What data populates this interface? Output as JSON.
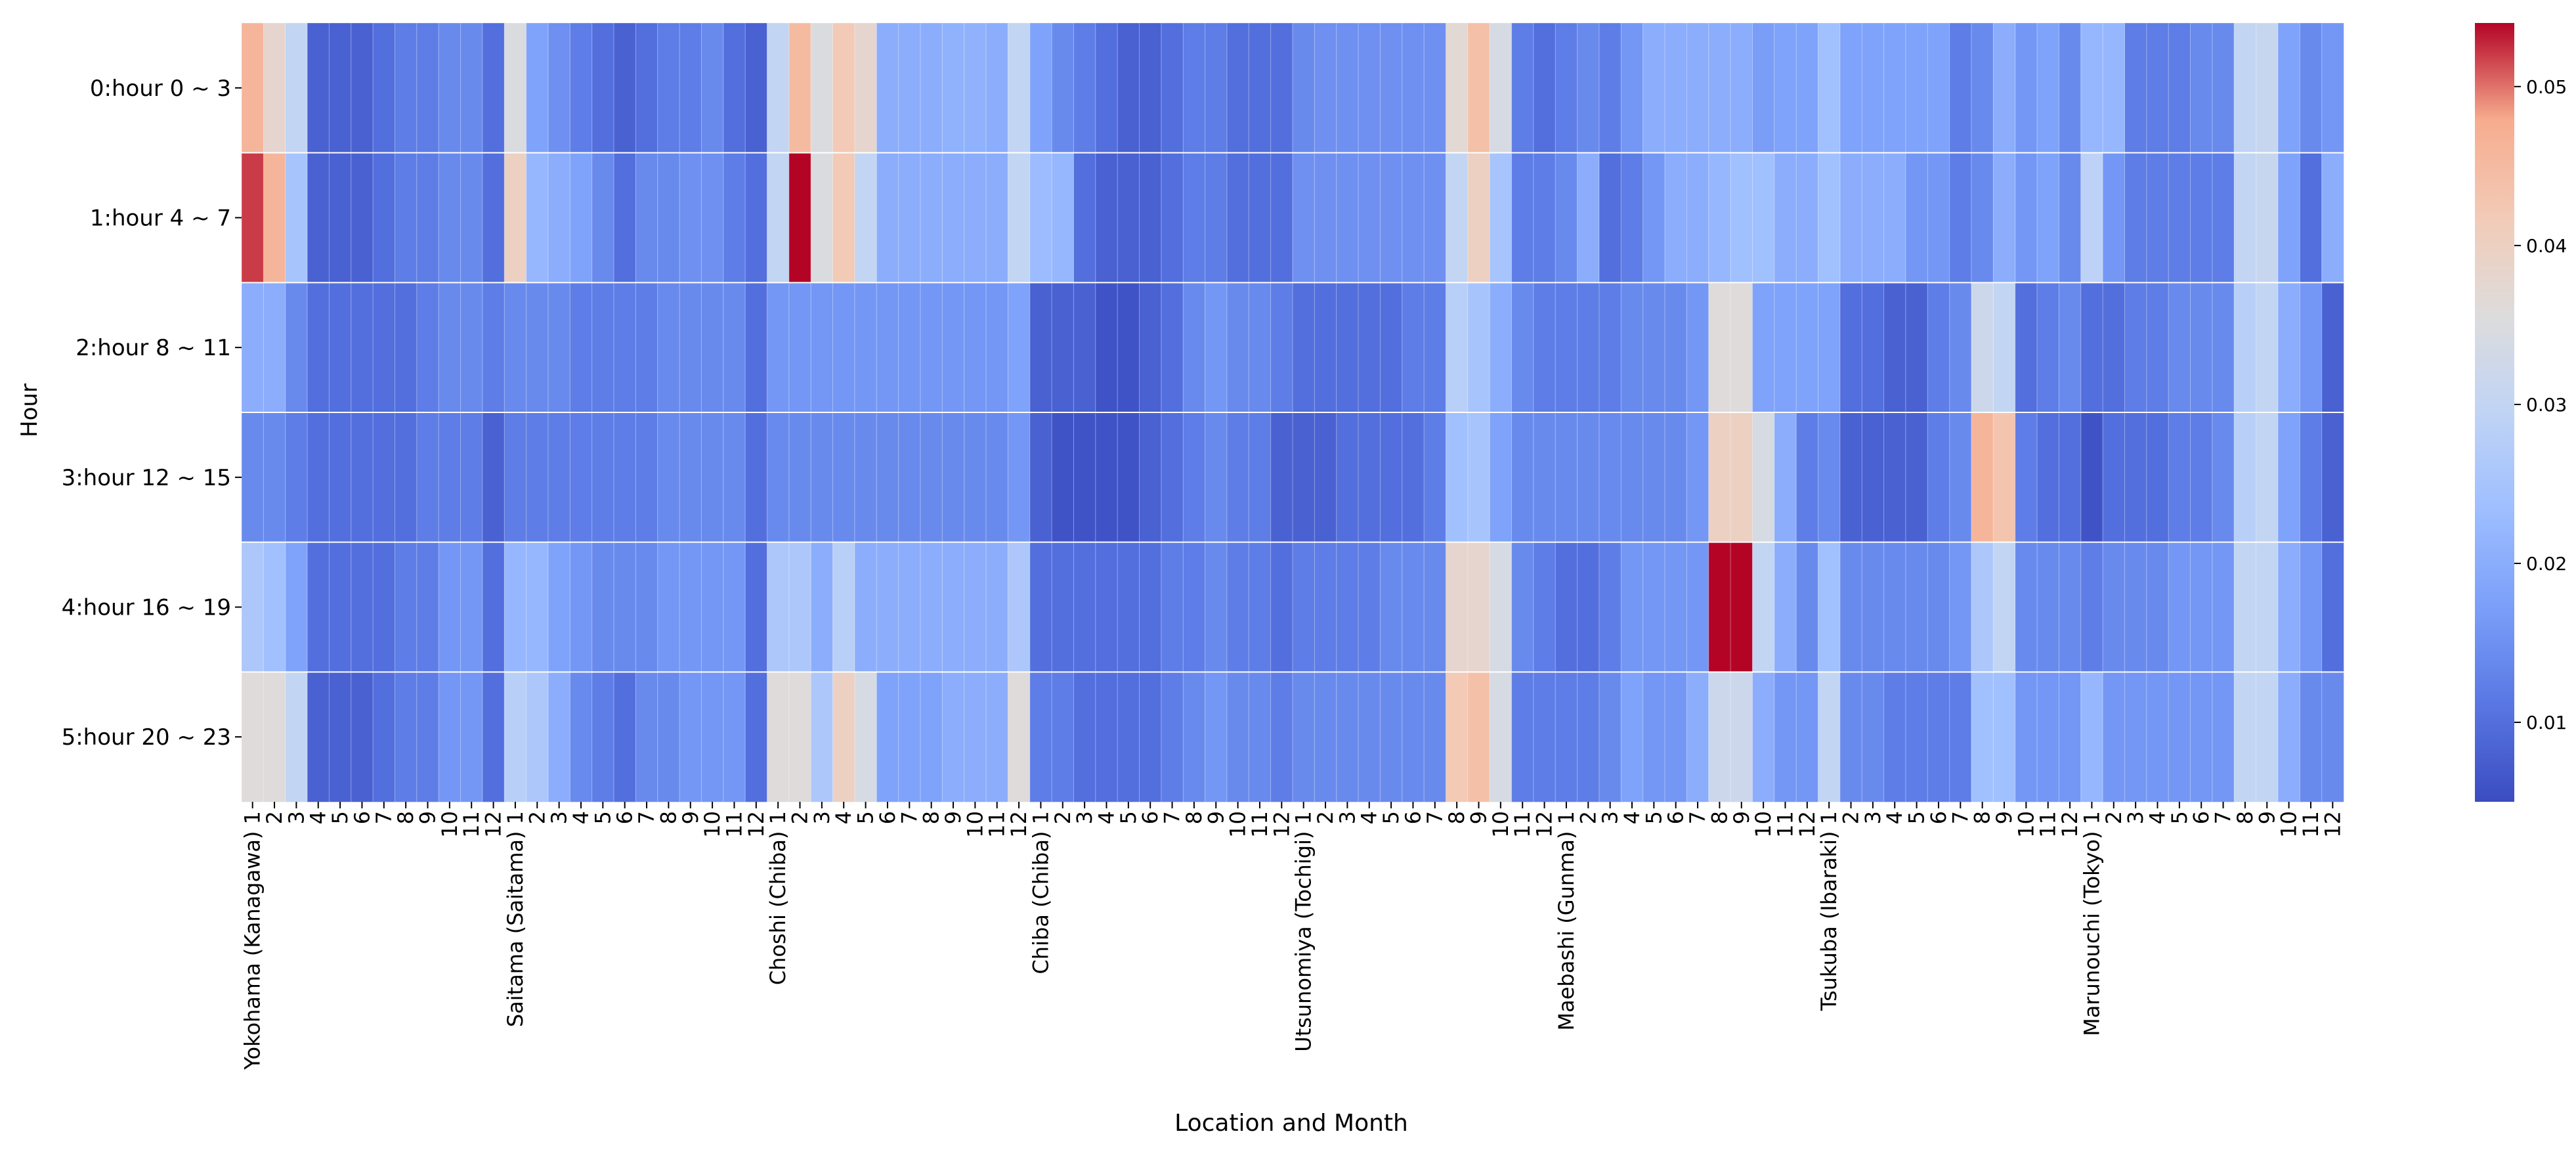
{
  "chart_data": {
    "type": "heatmap",
    "title": "",
    "xlabel": "Location and Month",
    "ylabel": "Hour",
    "rows": [
      "0:hour 0 ~ 3",
      "1:hour 4 ~ 7",
      "2:hour 8 ~ 11",
      "3:hour 12 ~ 15",
      "4:hour 16 ~ 19",
      "5:hour 20 ~ 23"
    ],
    "locations": [
      "Yokohama (Kanagawa)",
      "Saitama (Saitama)",
      "Choshi (Chiba)",
      "Chiba (Chiba)",
      "Utsunomiya (Tochigi)",
      "Maebashi (Gunma)",
      "Tsukuba (Ibaraki)",
      "Marunouchi (Tokyo)"
    ],
    "months": [
      "1",
      "2",
      "3",
      "4",
      "5",
      "6",
      "7",
      "8",
      "9",
      "10",
      "11",
      "12"
    ],
    "colorbar": {
      "min": 0.005,
      "max": 0.054,
      "ticks": [
        0.01,
        0.02,
        0.03,
        0.04,
        0.05
      ],
      "tick_labels": [
        "0.01",
        "0.02",
        "0.03",
        "0.04",
        "0.05"
      ],
      "colormap": "coolwarm"
    },
    "values": [
      [
        0.046,
        0.038,
        0.03,
        0.008,
        0.008,
        0.008,
        0.01,
        0.012,
        0.012,
        0.014,
        0.014,
        0.01,
        0.035,
        0.018,
        0.015,
        0.012,
        0.01,
        0.008,
        0.01,
        0.012,
        0.012,
        0.014,
        0.01,
        0.008,
        0.03,
        0.045,
        0.035,
        0.042,
        0.038,
        0.02,
        0.02,
        0.02,
        0.021,
        0.021,
        0.02,
        0.03,
        0.018,
        0.014,
        0.012,
        0.01,
        0.008,
        0.008,
        0.01,
        0.012,
        0.012,
        0.01,
        0.01,
        0.01,
        0.014,
        0.015,
        0.015,
        0.015,
        0.015,
        0.015,
        0.015,
        0.037,
        0.044,
        0.034,
        0.012,
        0.01,
        0.012,
        0.014,
        0.012,
        0.016,
        0.02,
        0.02,
        0.02,
        0.02,
        0.02,
        0.017,
        0.018,
        0.018,
        0.024,
        0.018,
        0.018,
        0.018,
        0.018,
        0.018,
        0.012,
        0.014,
        0.02,
        0.016,
        0.018,
        0.014,
        0.022,
        0.022,
        0.012,
        0.012,
        0.012,
        0.014,
        0.014,
        0.03,
        0.031,
        0.018,
        0.014,
        0.016
      ],
      [
        0.052,
        0.046,
        0.025,
        0.008,
        0.008,
        0.008,
        0.01,
        0.012,
        0.012,
        0.014,
        0.014,
        0.01,
        0.04,
        0.022,
        0.02,
        0.018,
        0.014,
        0.01,
        0.014,
        0.014,
        0.015,
        0.015,
        0.012,
        0.01,
        0.03,
        0.054,
        0.035,
        0.042,
        0.03,
        0.02,
        0.02,
        0.02,
        0.02,
        0.02,
        0.02,
        0.03,
        0.023,
        0.022,
        0.01,
        0.008,
        0.008,
        0.008,
        0.01,
        0.012,
        0.012,
        0.01,
        0.01,
        0.01,
        0.015,
        0.015,
        0.015,
        0.015,
        0.015,
        0.015,
        0.015,
        0.03,
        0.04,
        0.025,
        0.012,
        0.012,
        0.014,
        0.02,
        0.01,
        0.012,
        0.016,
        0.02,
        0.02,
        0.022,
        0.024,
        0.024,
        0.02,
        0.02,
        0.024,
        0.02,
        0.02,
        0.02,
        0.016,
        0.016,
        0.012,
        0.014,
        0.02,
        0.016,
        0.018,
        0.014,
        0.029,
        0.016,
        0.012,
        0.012,
        0.012,
        0.012,
        0.012,
        0.03,
        0.031,
        0.018,
        0.01,
        0.02
      ],
      [
        0.02,
        0.02,
        0.014,
        0.01,
        0.01,
        0.01,
        0.01,
        0.01,
        0.012,
        0.014,
        0.014,
        0.012,
        0.014,
        0.014,
        0.014,
        0.012,
        0.012,
        0.012,
        0.012,
        0.014,
        0.014,
        0.014,
        0.014,
        0.01,
        0.016,
        0.016,
        0.016,
        0.016,
        0.016,
        0.016,
        0.016,
        0.016,
        0.016,
        0.016,
        0.016,
        0.018,
        0.008,
        0.008,
        0.008,
        0.006,
        0.006,
        0.008,
        0.01,
        0.014,
        0.016,
        0.014,
        0.014,
        0.012,
        0.01,
        0.01,
        0.01,
        0.01,
        0.01,
        0.012,
        0.012,
        0.028,
        0.025,
        0.02,
        0.014,
        0.012,
        0.012,
        0.012,
        0.012,
        0.014,
        0.014,
        0.014,
        0.016,
        0.036,
        0.036,
        0.018,
        0.018,
        0.018,
        0.018,
        0.01,
        0.01,
        0.008,
        0.008,
        0.012,
        0.014,
        0.032,
        0.03,
        0.01,
        0.012,
        0.014,
        0.01,
        0.01,
        0.012,
        0.012,
        0.014,
        0.014,
        0.014,
        0.028,
        0.03,
        0.02,
        0.016,
        0.008
      ],
      [
        0.014,
        0.014,
        0.012,
        0.01,
        0.01,
        0.01,
        0.01,
        0.01,
        0.012,
        0.012,
        0.012,
        0.008,
        0.012,
        0.012,
        0.012,
        0.012,
        0.012,
        0.012,
        0.012,
        0.014,
        0.014,
        0.014,
        0.014,
        0.01,
        0.014,
        0.014,
        0.014,
        0.014,
        0.014,
        0.014,
        0.014,
        0.014,
        0.014,
        0.014,
        0.014,
        0.016,
        0.008,
        0.006,
        0.006,
        0.006,
        0.006,
        0.008,
        0.01,
        0.012,
        0.014,
        0.012,
        0.012,
        0.008,
        0.008,
        0.008,
        0.01,
        0.01,
        0.01,
        0.01,
        0.012,
        0.024,
        0.025,
        0.018,
        0.014,
        0.014,
        0.014,
        0.014,
        0.014,
        0.014,
        0.014,
        0.014,
        0.016,
        0.04,
        0.04,
        0.034,
        0.02,
        0.012,
        0.014,
        0.008,
        0.008,
        0.008,
        0.008,
        0.012,
        0.014,
        0.046,
        0.043,
        0.012,
        0.01,
        0.01,
        0.006,
        0.01,
        0.01,
        0.01,
        0.012,
        0.012,
        0.014,
        0.028,
        0.03,
        0.018,
        0.012,
        0.008
      ],
      [
        0.026,
        0.024,
        0.018,
        0.01,
        0.01,
        0.01,
        0.01,
        0.012,
        0.012,
        0.016,
        0.016,
        0.01,
        0.022,
        0.022,
        0.018,
        0.016,
        0.014,
        0.014,
        0.014,
        0.016,
        0.016,
        0.016,
        0.016,
        0.01,
        0.026,
        0.026,
        0.02,
        0.028,
        0.02,
        0.02,
        0.02,
        0.02,
        0.02,
        0.02,
        0.02,
        0.026,
        0.01,
        0.01,
        0.01,
        0.01,
        0.01,
        0.01,
        0.012,
        0.012,
        0.014,
        0.012,
        0.012,
        0.01,
        0.012,
        0.012,
        0.012,
        0.012,
        0.014,
        0.014,
        0.014,
        0.038,
        0.038,
        0.034,
        0.014,
        0.012,
        0.01,
        0.01,
        0.012,
        0.016,
        0.016,
        0.016,
        0.016,
        0.054,
        0.054,
        0.03,
        0.02,
        0.014,
        0.024,
        0.014,
        0.014,
        0.014,
        0.014,
        0.014,
        0.016,
        0.026,
        0.03,
        0.014,
        0.014,
        0.014,
        0.012,
        0.014,
        0.014,
        0.014,
        0.016,
        0.016,
        0.016,
        0.03,
        0.03,
        0.02,
        0.016,
        0.01
      ],
      [
        0.036,
        0.036,
        0.03,
        0.008,
        0.008,
        0.008,
        0.01,
        0.012,
        0.012,
        0.016,
        0.016,
        0.01,
        0.028,
        0.026,
        0.02,
        0.014,
        0.012,
        0.01,
        0.014,
        0.014,
        0.016,
        0.016,
        0.016,
        0.01,
        0.036,
        0.036,
        0.026,
        0.04,
        0.034,
        0.018,
        0.018,
        0.018,
        0.02,
        0.02,
        0.02,
        0.036,
        0.012,
        0.012,
        0.01,
        0.01,
        0.01,
        0.01,
        0.012,
        0.014,
        0.016,
        0.014,
        0.014,
        0.012,
        0.014,
        0.014,
        0.014,
        0.014,
        0.014,
        0.014,
        0.014,
        0.042,
        0.044,
        0.034,
        0.012,
        0.012,
        0.012,
        0.012,
        0.014,
        0.018,
        0.016,
        0.016,
        0.02,
        0.032,
        0.032,
        0.02,
        0.016,
        0.016,
        0.03,
        0.014,
        0.014,
        0.012,
        0.012,
        0.012,
        0.012,
        0.024,
        0.024,
        0.016,
        0.016,
        0.016,
        0.022,
        0.016,
        0.016,
        0.016,
        0.016,
        0.016,
        0.016,
        0.03,
        0.03,
        0.02,
        0.014,
        0.014
      ]
    ]
  }
}
